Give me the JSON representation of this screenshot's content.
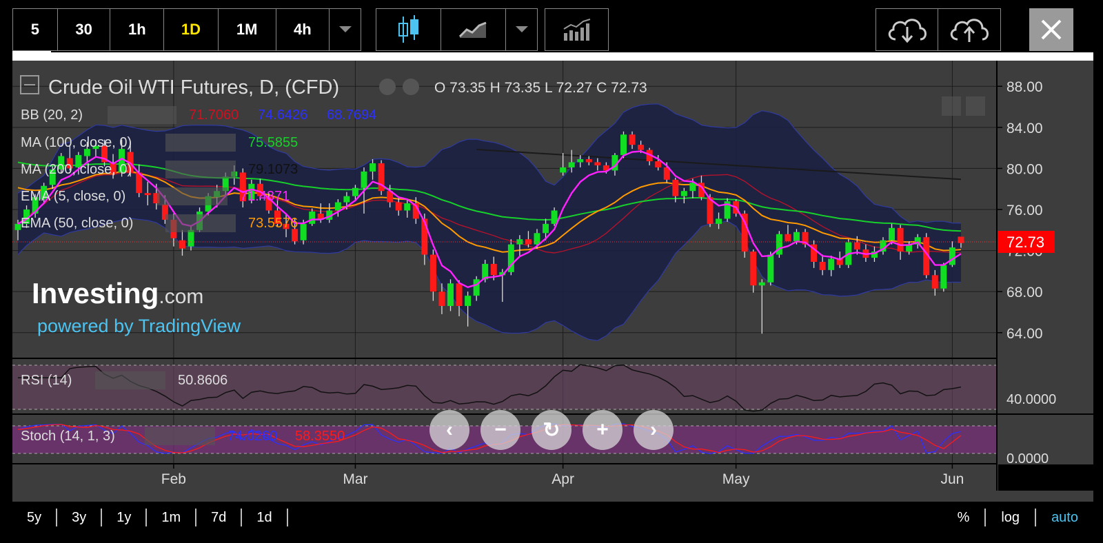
{
  "toolbar": {
    "intervals": [
      "5",
      "30",
      "1h",
      "1D",
      "1M",
      "4h"
    ],
    "active_interval": "1D"
  },
  "chart_data": {
    "type": "candlestick",
    "title": "Crude Oil WTI Futures, D, (CFD)",
    "ohlc_label": {
      "o": "73.35",
      "h": "73.35",
      "l": "72.27",
      "c": "72.73"
    },
    "last_price": "72.73",
    "x_ticks": [
      "Feb",
      "Mar",
      "Apr",
      "May",
      "Jun"
    ],
    "y_ticks": [
      "88.00",
      "84.00",
      "80.00",
      "76.00",
      "72.00",
      "68.00",
      "64.00"
    ],
    "ylim": [
      61.5,
      90.5
    ],
    "candles": [
      {
        "o": 74.0,
        "h": 75.0,
        "l": 73.0,
        "c": 74.6
      },
      {
        "o": 74.6,
        "h": 76.4,
        "l": 74.2,
        "c": 76.0
      },
      {
        "o": 75.6,
        "h": 77.5,
        "l": 75.2,
        "c": 77.2
      },
      {
        "o": 77.0,
        "h": 78.6,
        "l": 76.6,
        "c": 78.3
      },
      {
        "o": 78.4,
        "h": 80.2,
        "l": 78.0,
        "c": 79.9
      },
      {
        "o": 79.9,
        "h": 81.5,
        "l": 79.6,
        "c": 81.2
      },
      {
        "o": 81.0,
        "h": 82.2,
        "l": 79.8,
        "c": 80.0
      },
      {
        "o": 80.1,
        "h": 81.6,
        "l": 79.4,
        "c": 81.3
      },
      {
        "o": 81.2,
        "h": 82.6,
        "l": 80.6,
        "c": 81.9
      },
      {
        "o": 81.9,
        "h": 82.7,
        "l": 81.1,
        "c": 82.2
      },
      {
        "o": 82.2,
        "h": 82.8,
        "l": 80.2,
        "c": 80.6
      },
      {
        "o": 80.5,
        "h": 81.4,
        "l": 79.0,
        "c": 79.5
      },
      {
        "o": 79.6,
        "h": 82.8,
        "l": 79.2,
        "c": 81.9
      },
      {
        "o": 81.6,
        "h": 82.6,
        "l": 79.2,
        "c": 79.6
      },
      {
        "o": 79.6,
        "h": 80.4,
        "l": 77.2,
        "c": 77.6
      },
      {
        "o": 77.6,
        "h": 78.7,
        "l": 76.4,
        "c": 77.4
      },
      {
        "o": 77.6,
        "h": 78.5,
        "l": 76.0,
        "c": 76.6
      },
      {
        "o": 76.5,
        "h": 77.4,
        "l": 74.6,
        "c": 75.0
      },
      {
        "o": 75.0,
        "h": 75.6,
        "l": 72.4,
        "c": 73.2
      },
      {
        "o": 73.0,
        "h": 74.0,
        "l": 71.5,
        "c": 72.2
      },
      {
        "o": 72.4,
        "h": 74.4,
        "l": 72.0,
        "c": 74.0
      },
      {
        "o": 74.0,
        "h": 76.2,
        "l": 73.8,
        "c": 75.8
      },
      {
        "o": 75.8,
        "h": 77.6,
        "l": 75.4,
        "c": 77.3
      },
      {
        "o": 77.2,
        "h": 78.4,
        "l": 76.2,
        "c": 77.8
      },
      {
        "o": 77.8,
        "h": 79.6,
        "l": 77.2,
        "c": 79.2
      },
      {
        "o": 79.2,
        "h": 80.3,
        "l": 78.4,
        "c": 79.7
      },
      {
        "o": 79.6,
        "h": 80.0,
        "l": 76.2,
        "c": 76.8
      },
      {
        "o": 76.9,
        "h": 78.9,
        "l": 76.6,
        "c": 78.5
      },
      {
        "o": 78.5,
        "h": 79.0,
        "l": 76.9,
        "c": 77.3
      },
      {
        "o": 77.2,
        "h": 77.6,
        "l": 75.6,
        "c": 75.9
      },
      {
        "o": 75.9,
        "h": 76.9,
        "l": 74.3,
        "c": 74.6
      },
      {
        "o": 74.6,
        "h": 75.6,
        "l": 73.3,
        "c": 74.1
      },
      {
        "o": 74.1,
        "h": 75.2,
        "l": 72.6,
        "c": 72.9
      },
      {
        "o": 73.0,
        "h": 75.0,
        "l": 72.6,
        "c": 74.6
      },
      {
        "o": 74.6,
        "h": 76.1,
        "l": 74.4,
        "c": 75.8
      },
      {
        "o": 75.6,
        "h": 76.6,
        "l": 74.7,
        "c": 75.0
      },
      {
        "o": 75.0,
        "h": 76.6,
        "l": 74.7,
        "c": 75.9
      },
      {
        "o": 75.9,
        "h": 77.0,
        "l": 75.3,
        "c": 76.7
      },
      {
        "o": 76.7,
        "h": 77.7,
        "l": 76.0,
        "c": 77.3
      },
      {
        "o": 77.3,
        "h": 78.4,
        "l": 76.8,
        "c": 78.1
      },
      {
        "o": 78.1,
        "h": 80.1,
        "l": 75.6,
        "c": 79.7
      },
      {
        "o": 79.7,
        "h": 80.9,
        "l": 78.9,
        "c": 80.5
      },
      {
        "o": 80.5,
        "h": 80.8,
        "l": 77.4,
        "c": 77.8
      },
      {
        "o": 77.8,
        "h": 78.4,
        "l": 76.2,
        "c": 76.7
      },
      {
        "o": 76.7,
        "h": 77.1,
        "l": 75.4,
        "c": 75.9
      },
      {
        "o": 75.9,
        "h": 77.0,
        "l": 75.2,
        "c": 76.6
      },
      {
        "o": 76.6,
        "h": 77.2,
        "l": 74.6,
        "c": 75.1
      },
      {
        "o": 75.1,
        "h": 75.6,
        "l": 70.6,
        "c": 71.6
      },
      {
        "o": 71.6,
        "h": 72.1,
        "l": 67.1,
        "c": 68.0
      },
      {
        "o": 68.0,
        "h": 68.8,
        "l": 65.8,
        "c": 66.6
      },
      {
        "o": 66.6,
        "h": 69.2,
        "l": 66.1,
        "c": 68.8
      },
      {
        "o": 68.8,
        "h": 69.1,
        "l": 65.6,
        "c": 66.6
      },
      {
        "o": 66.6,
        "h": 68.0,
        "l": 64.6,
        "c": 67.6
      },
      {
        "o": 67.6,
        "h": 69.5,
        "l": 67.1,
        "c": 69.2
      },
      {
        "o": 69.2,
        "h": 71.1,
        "l": 68.9,
        "c": 70.7
      },
      {
        "o": 70.7,
        "h": 71.4,
        "l": 69.1,
        "c": 69.6
      },
      {
        "o": 69.6,
        "h": 70.2,
        "l": 67.0,
        "c": 69.9
      },
      {
        "o": 69.9,
        "h": 73.1,
        "l": 69.6,
        "c": 72.6
      },
      {
        "o": 72.6,
        "h": 73.5,
        "l": 71.5,
        "c": 73.1
      },
      {
        "o": 73.1,
        "h": 73.9,
        "l": 72.3,
        "c": 72.6
      },
      {
        "o": 72.6,
        "h": 74.1,
        "l": 72.2,
        "c": 73.7
      },
      {
        "o": 73.7,
        "h": 75.1,
        "l": 73.0,
        "c": 74.6
      },
      {
        "o": 74.6,
        "h": 76.2,
        "l": 74.4,
        "c": 75.9
      },
      {
        "o": 79.6,
        "h": 81.5,
        "l": 79.3,
        "c": 80.1
      },
      {
        "o": 80.1,
        "h": 81.8,
        "l": 79.6,
        "c": 80.6
      },
      {
        "o": 80.6,
        "h": 81.3,
        "l": 80.1,
        "c": 80.9
      },
      {
        "o": 80.9,
        "h": 81.2,
        "l": 80.3,
        "c": 80.6
      },
      {
        "o": 80.6,
        "h": 81.0,
        "l": 79.8,
        "c": 80.3
      },
      {
        "o": 80.3,
        "h": 80.6,
        "l": 79.5,
        "c": 79.8
      },
      {
        "o": 79.8,
        "h": 81.5,
        "l": 79.3,
        "c": 81.3
      },
      {
        "o": 81.3,
        "h": 83.6,
        "l": 81.0,
        "c": 83.3
      },
      {
        "o": 83.3,
        "h": 83.6,
        "l": 81.9,
        "c": 82.3
      },
      {
        "o": 82.3,
        "h": 82.7,
        "l": 81.5,
        "c": 81.8
      },
      {
        "o": 81.8,
        "h": 82.0,
        "l": 80.3,
        "c": 80.7
      },
      {
        "o": 80.7,
        "h": 81.3,
        "l": 79.8,
        "c": 80.1
      },
      {
        "o": 80.1,
        "h": 80.6,
        "l": 78.6,
        "c": 78.9
      },
      {
        "o": 78.9,
        "h": 79.1,
        "l": 76.7,
        "c": 77.3
      },
      {
        "o": 77.3,
        "h": 78.1,
        "l": 76.6,
        "c": 77.8
      },
      {
        "o": 77.8,
        "h": 79.0,
        "l": 77.1,
        "c": 78.6
      },
      {
        "o": 78.6,
        "h": 79.3,
        "l": 76.9,
        "c": 77.2
      },
      {
        "o": 77.2,
        "h": 77.5,
        "l": 74.3,
        "c": 74.6
      },
      {
        "o": 74.6,
        "h": 75.7,
        "l": 74.1,
        "c": 75.1
      },
      {
        "o": 75.1,
        "h": 77.1,
        "l": 74.8,
        "c": 76.8
      },
      {
        "o": 76.8,
        "h": 77.0,
        "l": 75.3,
        "c": 75.6
      },
      {
        "o": 75.6,
        "h": 75.9,
        "l": 71.3,
        "c": 71.9
      },
      {
        "o": 71.9,
        "h": 72.1,
        "l": 67.9,
        "c": 68.6
      },
      {
        "o": 68.6,
        "h": 69.2,
        "l": 63.9,
        "c": 68.9
      },
      {
        "o": 68.9,
        "h": 71.9,
        "l": 68.6,
        "c": 71.6
      },
      {
        "o": 71.6,
        "h": 73.9,
        "l": 71.3,
        "c": 73.6
      },
      {
        "o": 73.6,
        "h": 74.5,
        "l": 73.0,
        "c": 72.9
      },
      {
        "o": 72.9,
        "h": 74.1,
        "l": 72.6,
        "c": 73.8
      },
      {
        "o": 73.8,
        "h": 74.1,
        "l": 72.3,
        "c": 72.6
      },
      {
        "o": 72.6,
        "h": 73.0,
        "l": 70.3,
        "c": 70.9
      },
      {
        "o": 70.9,
        "h": 71.6,
        "l": 69.6,
        "c": 70.1
      },
      {
        "o": 70.1,
        "h": 71.5,
        "l": 69.5,
        "c": 71.2
      },
      {
        "o": 71.2,
        "h": 71.9,
        "l": 70.3,
        "c": 70.6
      },
      {
        "o": 70.6,
        "h": 73.1,
        "l": 70.3,
        "c": 72.8
      },
      {
        "o": 72.8,
        "h": 73.4,
        "l": 71.6,
        "c": 72.1
      },
      {
        "o": 72.1,
        "h": 72.6,
        "l": 70.9,
        "c": 71.3
      },
      {
        "o": 71.3,
        "h": 72.4,
        "l": 70.9,
        "c": 71.9
      },
      {
        "o": 71.9,
        "h": 73.3,
        "l": 71.6,
        "c": 73.0
      },
      {
        "o": 73.0,
        "h": 74.6,
        "l": 72.6,
        "c": 74.2
      },
      {
        "o": 74.2,
        "h": 74.5,
        "l": 71.1,
        "c": 71.9
      },
      {
        "o": 71.9,
        "h": 72.9,
        "l": 71.6,
        "c": 72.6
      },
      {
        "o": 72.6,
        "h": 73.6,
        "l": 72.2,
        "c": 73.3
      },
      {
        "o": 73.3,
        "h": 73.7,
        "l": 69.3,
        "c": 69.6
      },
      {
        "o": 69.6,
        "h": 70.1,
        "l": 67.6,
        "c": 68.3
      },
      {
        "o": 68.3,
        "h": 70.8,
        "l": 68.0,
        "c": 70.6
      },
      {
        "o": 70.6,
        "h": 72.9,
        "l": 70.4,
        "c": 72.3
      },
      {
        "o": 73.35,
        "h": 73.35,
        "l": 72.27,
        "c": 72.73
      }
    ],
    "ma_labels": {
      "bb": "BB (20, 2)",
      "bb_vals": [
        "71.7060",
        "74.6426",
        "68.7694"
      ],
      "ma100": "MA (100, close, 0)",
      "ma100_val": "75.5855",
      "ma200": "MA (200, close, 0)",
      "ma200_val": "79.1073",
      "ema5": "EMA (5, close, 0)",
      "ema5_val": "71.4371",
      "ema50": "EMA (50, close, 0)",
      "ema50_val": "73.5576"
    },
    "colors": {
      "up": "#11dd22",
      "down": "#ff1a1a",
      "bb_fill": "#1b2042",
      "ma100": "#17d12b",
      "ma200": "#1a1a1a",
      "ema5": "#ff22ff",
      "ema50": "#ff9a00",
      "bb_mid": "#b5122b",
      "price_tag": "#ff0000"
    },
    "rsi": {
      "label": "RSI (14)",
      "value": "50.8606",
      "axis_tick": "40.0000"
    },
    "stoch": {
      "label": "Stoch (14, 1, 3)",
      "k": "74.0260",
      "d": "58.3550",
      "axis_tick": "0.0000"
    }
  },
  "watermark": {
    "brand": "Investing",
    "suffix": ".com",
    "powered": "powered by TradingView"
  },
  "bottom_bar": {
    "ranges": [
      "5y",
      "3y",
      "1y",
      "1m",
      "7d",
      "1d"
    ],
    "scale": [
      "%",
      "log",
      "auto"
    ],
    "active_scale": "auto"
  },
  "nav_icons": [
    "left-arrow",
    "zoom-out",
    "reset",
    "zoom-in",
    "right-arrow"
  ]
}
